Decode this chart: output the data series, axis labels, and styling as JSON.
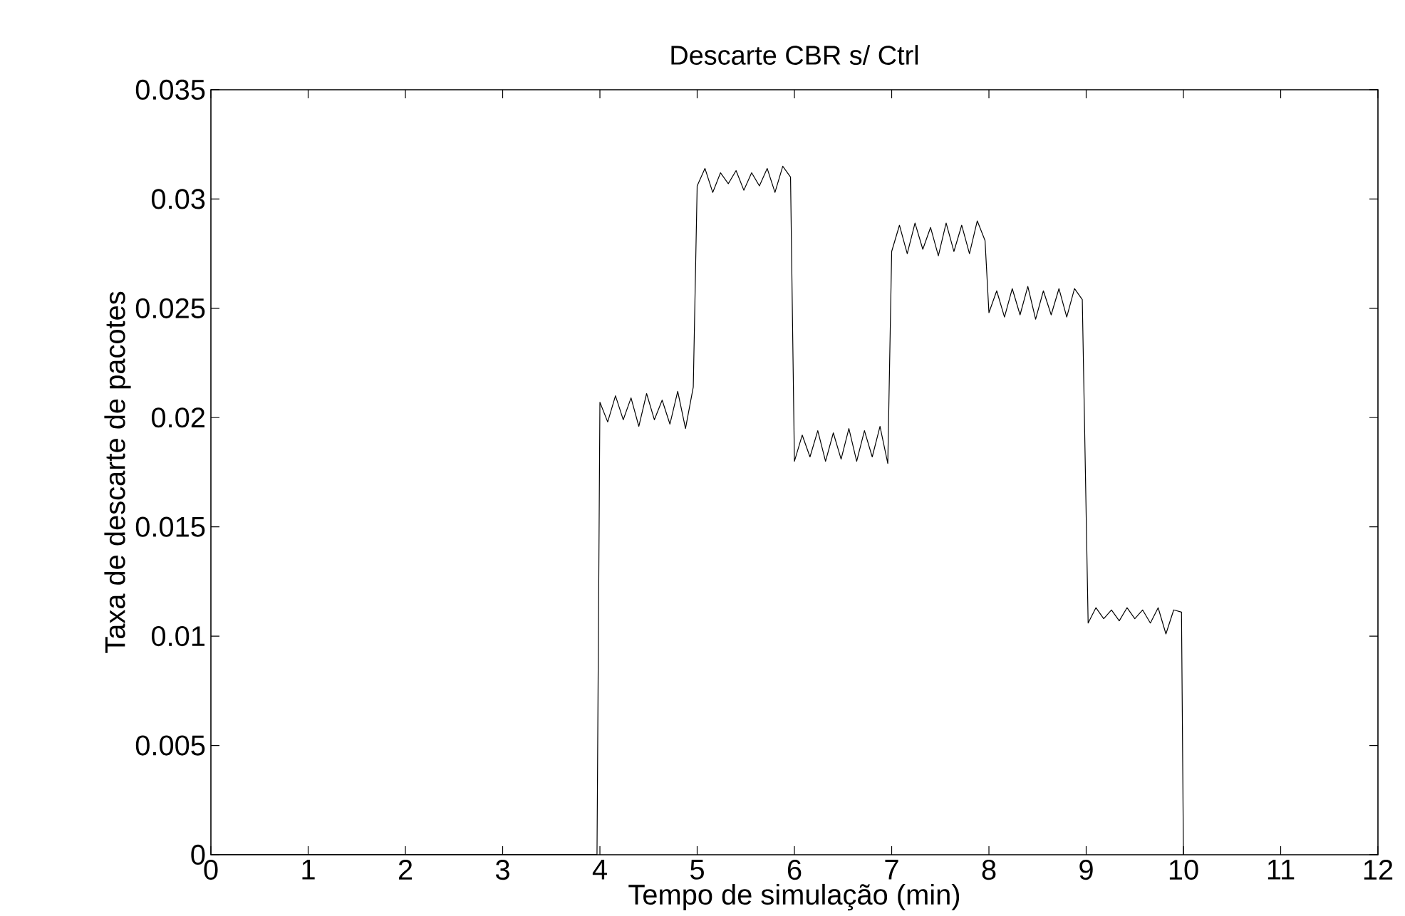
{
  "chart_data": {
    "type": "line",
    "title": "Descarte CBR s/ Ctrl",
    "xlabel": "Tempo de simulação (min)",
    "ylabel": "Taxa de descarte de pacotes",
    "xlim": [
      0,
      12
    ],
    "ylim": [
      0,
      0.035
    ],
    "xticks": [
      0,
      1,
      2,
      3,
      4,
      5,
      6,
      7,
      8,
      9,
      10,
      11,
      12
    ],
    "yticks": [
      {
        "value": 0,
        "label": "0"
      },
      {
        "value": 0.005,
        "label": "0.005"
      },
      {
        "value": 0.01,
        "label": "0.01"
      },
      {
        "value": 0.015,
        "label": "0.015"
      },
      {
        "value": 0.02,
        "label": "0.02"
      },
      {
        "value": 0.025,
        "label": "0.025"
      },
      {
        "value": 0.03,
        "label": "0.03"
      },
      {
        "value": 0.035,
        "label": "0.035"
      }
    ],
    "grid": false,
    "marker": "none",
    "line_style": "solid",
    "series": [
      {
        "color": "#000000",
        "x": [
          0,
          3.97,
          4.0,
          4.08,
          4.16,
          4.24,
          4.32,
          4.4,
          4.48,
          4.56,
          4.64,
          4.72,
          4.8,
          4.88,
          4.96,
          5.0,
          5.08,
          5.16,
          5.24,
          5.32,
          5.4,
          5.48,
          5.56,
          5.64,
          5.72,
          5.8,
          5.88,
          5.96,
          6.0,
          6.08,
          6.16,
          6.24,
          6.32,
          6.4,
          6.48,
          6.56,
          6.64,
          6.72,
          6.8,
          6.88,
          6.96,
          7.0,
          7.08,
          7.16,
          7.24,
          7.32,
          7.4,
          7.48,
          7.56,
          7.64,
          7.72,
          7.8,
          7.88,
          7.96,
          8.0,
          8.08,
          8.16,
          8.24,
          8.32,
          8.4,
          8.48,
          8.56,
          8.64,
          8.72,
          8.8,
          8.88,
          8.96,
          9.02,
          9.1,
          9.18,
          9.26,
          9.34,
          9.42,
          9.5,
          9.58,
          9.66,
          9.74,
          9.82,
          9.9,
          9.98,
          10.0
        ],
        "values": [
          0,
          0,
          0.0207,
          0.0198,
          0.021,
          0.0199,
          0.0209,
          0.0196,
          0.0211,
          0.0199,
          0.0208,
          0.0197,
          0.0212,
          0.0195,
          0.0214,
          0.0306,
          0.0314,
          0.0303,
          0.0312,
          0.0307,
          0.0313,
          0.0304,
          0.0312,
          0.0306,
          0.0314,
          0.0303,
          0.0315,
          0.031,
          0.018,
          0.0192,
          0.0182,
          0.0194,
          0.018,
          0.0193,
          0.0181,
          0.0195,
          0.018,
          0.0194,
          0.0182,
          0.0196,
          0.0179,
          0.0276,
          0.0288,
          0.0275,
          0.0289,
          0.0277,
          0.0287,
          0.0274,
          0.0289,
          0.0276,
          0.0288,
          0.0275,
          0.029,
          0.0281,
          0.0248,
          0.0258,
          0.0246,
          0.0259,
          0.0247,
          0.026,
          0.0245,
          0.0258,
          0.0247,
          0.0259,
          0.0246,
          0.0259,
          0.0254,
          0.0106,
          0.0113,
          0.0108,
          0.0112,
          0.0107,
          0.0113,
          0.0108,
          0.0112,
          0.0106,
          0.0113,
          0.0101,
          0.0112,
          0.0111,
          0
        ]
      }
    ]
  }
}
